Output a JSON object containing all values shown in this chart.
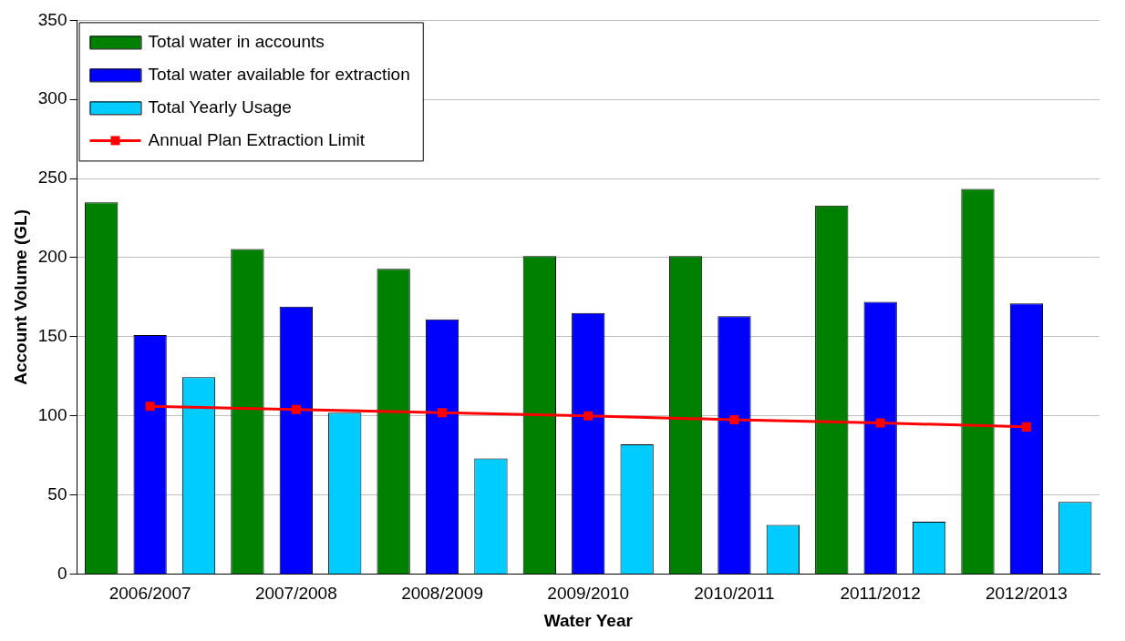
{
  "chart_data": {
    "type": "bar",
    "xlabel": "Water Year",
    "ylabel": "Account Volume (GL)",
    "categories": [
      "2006/2007",
      "2007/2008",
      "2008/2009",
      "2009/2010",
      "2010/2011",
      "2011/2012",
      "2012/2013"
    ],
    "series": [
      {
        "name": "Total water in accounts",
        "color": "#008000",
        "values": [
          235,
          205.5,
          193,
          201,
          201,
          233,
          243.5
        ]
      },
      {
        "name": "Total water available for extraction",
        "color": "#0000ff",
        "values": [
          151,
          169,
          161,
          165,
          163,
          172,
          171
        ]
      },
      {
        "name": "Total Yearly Usage",
        "color": "#00ccff",
        "values": [
          124.5,
          102,
          73,
          82,
          31,
          33,
          45.5
        ]
      },
      {
        "name": "Annual Plan Extraction Limit",
        "type": "line",
        "color": "#ff0000",
        "marker": "square",
        "line_style": "solid",
        "values": [
          106,
          104,
          102,
          100,
          97.5,
          95.5,
          93
        ]
      }
    ],
    "ylim": [
      0,
      350
    ],
    "yticks": [
      0,
      50,
      100,
      150,
      200,
      250,
      300,
      350
    ],
    "grid": "y",
    "legend": "top left"
  }
}
